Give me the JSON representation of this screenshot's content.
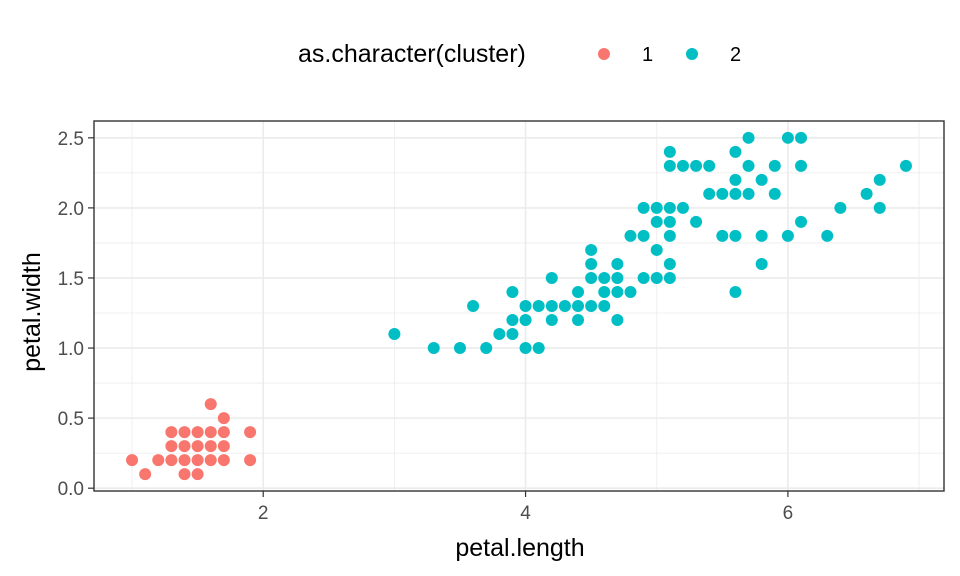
{
  "chart_data": {
    "type": "scatter",
    "xlabel": "petal.length",
    "ylabel": "petal.width",
    "xlim": [
      0.71,
      7.19
    ],
    "ylim": [
      -0.02,
      2.62
    ],
    "x_ticks": [
      2,
      4,
      6
    ],
    "x_tick_labels": [
      "2",
      "4",
      "6"
    ],
    "y_ticks": [
      0.0,
      0.5,
      1.0,
      1.5,
      2.0,
      2.5
    ],
    "y_tick_labels": [
      "0.0",
      "0.5",
      "1.0",
      "1.5",
      "2.0",
      "2.5"
    ],
    "grid": true,
    "legend": {
      "title": "as.character(cluster)",
      "position": "top",
      "entries": [
        "1",
        "2"
      ]
    },
    "series": [
      {
        "name": "1",
        "color": "#F8766D",
        "points": [
          [
            1.0,
            0.2
          ],
          [
            1.1,
            0.1
          ],
          [
            1.2,
            0.2
          ],
          [
            1.3,
            0.2
          ],
          [
            1.3,
            0.3
          ],
          [
            1.3,
            0.4
          ],
          [
            1.4,
            0.1
          ],
          [
            1.4,
            0.2
          ],
          [
            1.4,
            0.3
          ],
          [
            1.5,
            0.1
          ],
          [
            1.5,
            0.2
          ],
          [
            1.5,
            0.4
          ],
          [
            1.6,
            0.2
          ],
          [
            1.6,
            0.4
          ],
          [
            1.6,
            0.6
          ],
          [
            1.7,
            0.2
          ],
          [
            1.7,
            0.3
          ],
          [
            1.7,
            0.4
          ],
          [
            1.7,
            0.5
          ],
          [
            1.9,
            0.2
          ],
          [
            1.9,
            0.4
          ],
          [
            1.4,
            0.4
          ],
          [
            1.6,
            0.3
          ],
          [
            1.5,
            0.3
          ]
        ]
      },
      {
        "name": "2",
        "color": "#00BFC4",
        "points": [
          [
            3.0,
            1.1
          ],
          [
            3.3,
            1.0
          ],
          [
            3.5,
            1.0
          ],
          [
            3.6,
            1.3
          ],
          [
            3.7,
            1.0
          ],
          [
            3.8,
            1.1
          ],
          [
            3.9,
            1.1
          ],
          [
            3.9,
            1.2
          ],
          [
            3.9,
            1.4
          ],
          [
            4.0,
            1.0
          ],
          [
            4.0,
            1.2
          ],
          [
            4.0,
            1.3
          ],
          [
            4.1,
            1.0
          ],
          [
            4.1,
            1.3
          ],
          [
            4.2,
            1.2
          ],
          [
            4.2,
            1.3
          ],
          [
            4.2,
            1.5
          ],
          [
            4.3,
            1.3
          ],
          [
            4.4,
            1.2
          ],
          [
            4.4,
            1.3
          ],
          [
            4.4,
            1.4
          ],
          [
            4.5,
            1.3
          ],
          [
            4.5,
            1.5
          ],
          [
            4.5,
            1.6
          ],
          [
            4.5,
            1.7
          ],
          [
            4.6,
            1.3
          ],
          [
            4.6,
            1.4
          ],
          [
            4.6,
            1.5
          ],
          [
            4.7,
            1.2
          ],
          [
            4.7,
            1.4
          ],
          [
            4.7,
            1.5
          ],
          [
            4.7,
            1.6
          ],
          [
            4.8,
            1.4
          ],
          [
            4.8,
            1.8
          ],
          [
            4.9,
            1.5
          ],
          [
            4.9,
            1.8
          ],
          [
            4.9,
            2.0
          ],
          [
            5.0,
            1.5
          ],
          [
            5.0,
            1.7
          ],
          [
            5.0,
            1.9
          ],
          [
            5.0,
            2.0
          ],
          [
            5.1,
            1.5
          ],
          [
            5.1,
            1.6
          ],
          [
            5.1,
            1.8
          ],
          [
            5.1,
            1.9
          ],
          [
            5.1,
            2.0
          ],
          [
            5.1,
            2.3
          ],
          [
            5.1,
            2.4
          ],
          [
            5.2,
            2.0
          ],
          [
            5.2,
            2.3
          ],
          [
            5.3,
            1.9
          ],
          [
            5.3,
            2.3
          ],
          [
            5.4,
            2.1
          ],
          [
            5.4,
            2.3
          ],
          [
            5.5,
            1.8
          ],
          [
            5.5,
            2.1
          ],
          [
            5.6,
            1.4
          ],
          [
            5.6,
            1.8
          ],
          [
            5.6,
            2.1
          ],
          [
            5.6,
            2.2
          ],
          [
            5.6,
            2.4
          ],
          [
            5.7,
            2.1
          ],
          [
            5.7,
            2.3
          ],
          [
            5.7,
            2.5
          ],
          [
            5.8,
            1.6
          ],
          [
            5.8,
            1.8
          ],
          [
            5.8,
            2.2
          ],
          [
            5.9,
            2.1
          ],
          [
            5.9,
            2.3
          ],
          [
            6.0,
            1.8
          ],
          [
            6.0,
            2.5
          ],
          [
            6.1,
            1.9
          ],
          [
            6.1,
            2.3
          ],
          [
            6.1,
            2.5
          ],
          [
            6.3,
            1.8
          ],
          [
            6.4,
            2.0
          ],
          [
            6.6,
            2.1
          ],
          [
            6.7,
            2.0
          ],
          [
            6.7,
            2.2
          ],
          [
            6.9,
            2.3
          ]
        ]
      }
    ]
  }
}
